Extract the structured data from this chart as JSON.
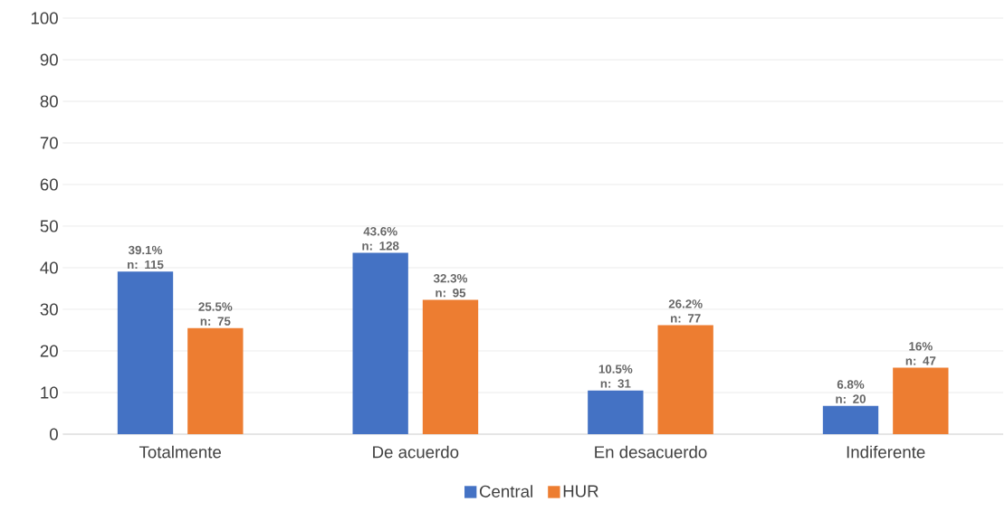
{
  "chart_data": {
    "type": "bar",
    "categories": [
      "Totalmente",
      "De acuerdo",
      "En desacuerdo",
      "Indiferente"
    ],
    "series": [
      {
        "name": "Central",
        "color": "#4472c4",
        "values": [
          39.1,
          43.6,
          10.5,
          6.8
        ],
        "value_labels": [
          "39.1% n: 115",
          "43.6% n: 128",
          "10.5% n: 31",
          "6.8% n: 20"
        ]
      },
      {
        "name": "HUR",
        "color": "#ed7d31",
        "values": [
          25.5,
          32.3,
          26.2,
          16
        ],
        "value_labels": [
          "25.5% n: 75",
          "32.3% n: 95",
          "26.2% n: 77",
          "16% n: 47"
        ]
      }
    ],
    "ylim": [
      0,
      100
    ],
    "yticks": [
      0,
      10,
      20,
      30,
      40,
      50,
      60,
      70,
      80,
      90,
      100
    ],
    "grid": "y",
    "legend": "bottom"
  }
}
